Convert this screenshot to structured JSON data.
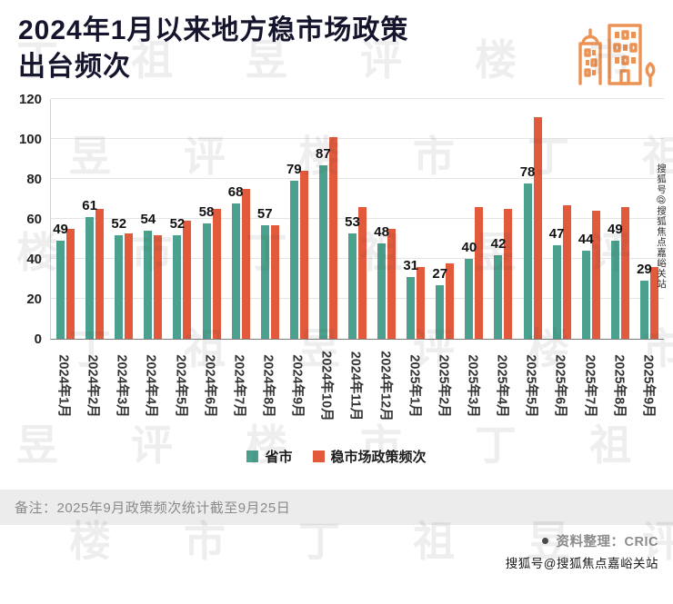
{
  "header": {
    "title_line1": "2024年1月以来地方稳市场政策",
    "title_line2": "出台频次",
    "icon_color": "#ec9253"
  },
  "chart_data": {
    "type": "bar",
    "title": "2024年1月以来地方稳市场政策出台频次",
    "categories": [
      "2024年1月",
      "2024年2月",
      "2024年3月",
      "2024年4月",
      "2024年5月",
      "2024年6月",
      "2024年7月",
      "2024年8月",
      "2024年9月",
      "2024年10月",
      "2024年11月",
      "2024年12月",
      "2025年1月",
      "2025年2月",
      "2025年3月",
      "2025年4月",
      "2025年5月",
      "2025年6月",
      "2025年7月",
      "2025年8月",
      "2025年9月"
    ],
    "series": [
      {
        "name": "省市",
        "color": "#4aa28e",
        "values": [
          49,
          61,
          52,
          54,
          52,
          58,
          68,
          57,
          79,
          87,
          53,
          48,
          31,
          27,
          40,
          42,
          78,
          47,
          44,
          49,
          29
        ],
        "data_labels_shown": true
      },
      {
        "name": "稳市场政策频次",
        "color": "#e2593c",
        "values": [
          55,
          65,
          53,
          52,
          59,
          65,
          75,
          57,
          84,
          101,
          66,
          55,
          36,
          38,
          66,
          65,
          111,
          67,
          64,
          66,
          36
        ],
        "data_labels_shown": false
      }
    ],
    "xlabel": "",
    "ylabel": "",
    "ylim": [
      0,
      120
    ],
    "yticks": [
      0,
      20,
      40,
      60,
      80,
      100,
      120
    ],
    "grid": true,
    "legend_position": "bottom"
  },
  "legend": {
    "items": [
      {
        "label": "省市",
        "color": "#4aa28e"
      },
      {
        "label": "稳市场政策频次",
        "color": "#e2593c"
      }
    ]
  },
  "footer": {
    "note": "备注：2025年9月政策频次统计截至9月25日",
    "source": "资料整理：CRIC",
    "sohu_watermark_bottom": "搜狐号@搜狐焦点嘉峪关站",
    "sohu_watermark_side": "搜狐号@搜狐焦点嘉峪关站"
  },
  "watermark": {
    "text": "丁祖昱评楼市"
  }
}
